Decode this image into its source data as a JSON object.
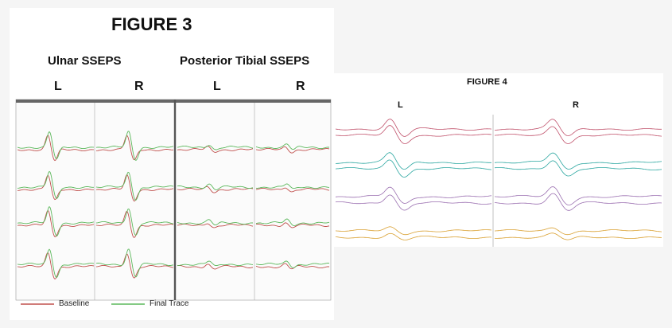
{
  "figure3": {
    "title": "FIGURE 3",
    "groups": [
      "Ulnar SSEPS",
      "Posterior Tibial SSEPS"
    ],
    "side_labels": [
      "L",
      "R",
      "L",
      "R"
    ],
    "legend": {
      "baseline_label": "Baseline",
      "final_label": "Final Trace",
      "baseline_color": "#c0504d",
      "final_color": "#5cb85c"
    }
  },
  "figure4": {
    "title": "FIGURE 4",
    "side_labels": [
      "L",
      "R"
    ],
    "trace_colors": [
      "#c0506a",
      "#2aa6a0",
      "#9a6fb0",
      "#d9a030"
    ]
  }
}
